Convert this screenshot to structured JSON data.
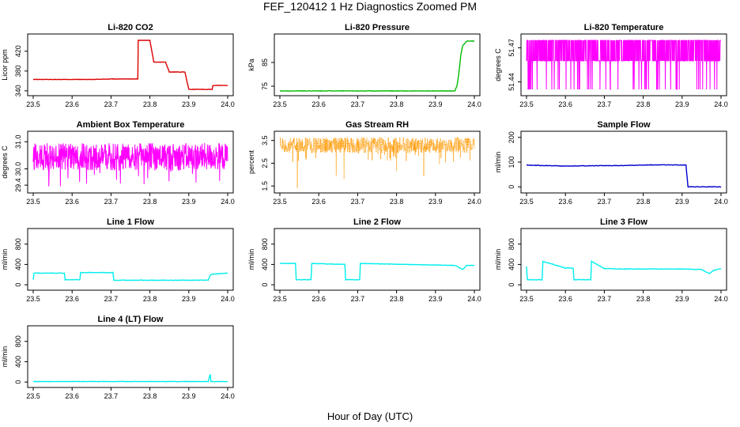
{
  "figure": {
    "title": "FEF_120412  1 Hz Diagnostics Zoomed PM",
    "xlabel": "Hour of Day (UTC)"
  },
  "chart_data": [
    {
      "type": "line",
      "title": "Li-820 CO2",
      "ylabel": "Licor ppm",
      "color": "#dd0000",
      "xlim": [
        23.5,
        24.0
      ],
      "ylim": [
        335,
        450
      ],
      "xticks": [
        "23.5",
        "23.6",
        "23.7",
        "23.8",
        "23.9",
        "24.0"
      ],
      "yticks": [
        340,
        380,
        420
      ],
      "x": [
        23.5,
        23.55,
        23.6,
        23.65,
        23.7,
        23.75,
        23.769,
        23.77,
        23.8,
        23.81,
        23.84,
        23.85,
        23.89,
        23.9,
        23.93,
        23.96,
        23.962,
        23.98,
        24.0
      ],
      "y": [
        363,
        363,
        363,
        363,
        364,
        364,
        364,
        442,
        442,
        398,
        398,
        378,
        378,
        343,
        343,
        343,
        351,
        351,
        351
      ]
    },
    {
      "type": "line",
      "title": "Li-820 Pressure",
      "ylabel": "kPa",
      "color": "#00bb00",
      "xlim": [
        23.5,
        24.0
      ],
      "ylim": [
        72,
        96
      ],
      "xticks": [
        "23.5",
        "23.6",
        "23.7",
        "23.8",
        "23.9",
        "24.0"
      ],
      "yticks": [
        75,
        85
      ],
      "x": [
        23.5,
        23.6,
        23.7,
        23.8,
        23.9,
        23.94,
        23.95,
        23.955,
        23.96,
        23.965,
        23.97,
        23.98,
        24.0
      ],
      "y": [
        73,
        73,
        73,
        73,
        73,
        73,
        73,
        75,
        80,
        88,
        92,
        94,
        94
      ]
    },
    {
      "type": "line",
      "title": "Li-820 Temperature",
      "ylabel": "degrees C",
      "color": "#ff00ff",
      "xlim": [
        23.5,
        24.0
      ],
      "ylim": [
        51.43,
        51.48
      ],
      "xticks": [
        "23.5",
        "23.6",
        "23.7",
        "23.8",
        "23.9",
        "24.0"
      ],
      "yticks": [
        "51.44",
        "51.47"
      ],
      "pattern": "two-level",
      "levels": [
        51.4335,
        51.4765
      ],
      "baseline": 51.4585
    },
    {
      "type": "line",
      "title": "Ambient Box Temperature",
      "ylabel": "degrees C",
      "color": "#ff00ff",
      "xlim": [
        23.5,
        24.0
      ],
      "ylim": [
        29.2,
        31.3
      ],
      "xticks": [
        "23.5",
        "23.6",
        "23.7",
        "23.8",
        "23.9",
        "24.0"
      ],
      "yticks": [
        "29.4",
        "30.0",
        "31.0"
      ],
      "pattern": "noise",
      "mean": 30.45,
      "spread": 0.5,
      "min": 29.35,
      "max": 31.15
    },
    {
      "type": "line",
      "title": "Gas Stream RH",
      "ylabel": "percent",
      "color": "#ff9900",
      "xlim": [
        23.5,
        24.0
      ],
      "ylim": [
        1.3,
        3.8
      ],
      "xticks": [
        "23.5",
        "23.6",
        "23.7",
        "23.8",
        "23.9",
        "24.0"
      ],
      "yticks": [
        "1.5",
        "2.5",
        "3.5"
      ],
      "pattern": "noise",
      "mean": 3.3,
      "spread": 0.35,
      "min": 1.4,
      "max": 3.7,
      "dips": [
        [
          23.545,
          1.4
        ],
        [
          23.645,
          1.95
        ],
        [
          23.665,
          1.8
        ],
        [
          23.8,
          2.15
        ],
        [
          23.87,
          1.95
        ],
        [
          23.91,
          2.45
        ]
      ]
    },
    {
      "type": "line",
      "title": "Sample Flow",
      "ylabel": "ml/min",
      "color": "#0000cc",
      "xlim": [
        23.5,
        24.0
      ],
      "ylim": [
        -15,
        215
      ],
      "xticks": [
        "23.5",
        "23.6",
        "23.7",
        "23.8",
        "23.9",
        "24.0"
      ],
      "yticks": [
        0,
        100,
        200
      ],
      "x": [
        23.5,
        23.55,
        23.6,
        23.65,
        23.7,
        23.75,
        23.8,
        23.85,
        23.9,
        23.91,
        23.915,
        23.95,
        24.0
      ],
      "y": [
        88,
        86,
        84,
        85,
        86,
        86,
        88,
        89,
        88,
        88,
        0,
        0,
        0
      ]
    },
    {
      "type": "line",
      "title": "Line 1 Flow",
      "ylabel": "ml/min",
      "color": "#00eeee",
      "xlim": [
        23.5,
        24.0
      ],
      "ylim": [
        -60,
        1060
      ],
      "xticks": [
        "23.5",
        "23.6",
        "23.7",
        "23.8",
        "23.9",
        "24.0"
      ],
      "yticks": [
        0,
        400,
        800
      ],
      "x": [
        23.5,
        23.502,
        23.58,
        23.582,
        23.62,
        23.622,
        23.705,
        23.707,
        23.95,
        23.955,
        23.96,
        24.0
      ],
      "y": [
        100,
        230,
        230,
        100,
        100,
        240,
        240,
        90,
        90,
        190,
        210,
        230
      ]
    },
    {
      "type": "line",
      "title": "Line 2 Flow",
      "ylabel": "ml/min",
      "color": "#00eeee",
      "xlim": [
        23.5,
        24.0
      ],
      "ylim": [
        -60,
        1060
      ],
      "xticks": [
        "23.5",
        "23.6",
        "23.7",
        "23.8",
        "23.9",
        "24.0"
      ],
      "yticks": [
        0,
        400,
        800
      ],
      "x": [
        23.5,
        23.54,
        23.542,
        23.58,
        23.582,
        23.667,
        23.669,
        23.705,
        23.707,
        23.95,
        23.96,
        23.97,
        23.98,
        24.0
      ],
      "y": [
        420,
        420,
        100,
        100,
        420,
        400,
        100,
        100,
        420,
        380,
        340,
        300,
        380,
        380
      ]
    },
    {
      "type": "line",
      "title": "Line 3 Flow",
      "ylabel": "ml/min",
      "color": "#00eeee",
      "xlim": [
        23.5,
        24.0
      ],
      "ylim": [
        -60,
        1060
      ],
      "xticks": [
        "23.5",
        "23.6",
        "23.7",
        "23.8",
        "23.9",
        "24.0"
      ],
      "yticks": [
        0,
        400,
        800
      ],
      "x": [
        23.5,
        23.502,
        23.54,
        23.542,
        23.6,
        23.62,
        23.622,
        23.665,
        23.667,
        23.7,
        23.75,
        23.8,
        23.9,
        23.95,
        23.97,
        23.98,
        24.0
      ],
      "y": [
        360,
        100,
        100,
        460,
        330,
        330,
        100,
        100,
        460,
        320,
        310,
        310,
        310,
        300,
        220,
        280,
        320
      ]
    },
    {
      "type": "line",
      "title": "Line 4 (LT) Flow",
      "ylabel": "ml/min",
      "color": "#00eeee",
      "xlim": [
        23.5,
        24.0
      ],
      "ylim": [
        -60,
        1060
      ],
      "xticks": [
        "23.5",
        "23.6",
        "23.7",
        "23.8",
        "23.9",
        "24.0"
      ],
      "yticks": [
        0,
        400,
        800
      ],
      "x": [
        23.5,
        23.95,
        23.955,
        23.957,
        23.96,
        24.0
      ],
      "y": [
        10,
        10,
        150,
        10,
        10,
        10
      ]
    }
  ]
}
